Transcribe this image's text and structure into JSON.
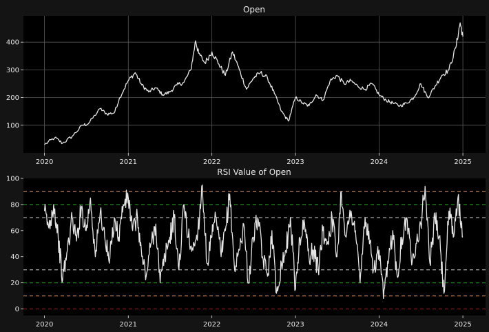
{
  "figure": {
    "background": "#141414",
    "plot_background": "#000000",
    "text_color": "#e8e8e8",
    "line_color": "#e6e6e6"
  },
  "chart_data": [
    {
      "type": "line",
      "title": "Open",
      "xlabel": "",
      "ylabel": "",
      "xlim": [
        "2019-10-01",
        "2025-04-10"
      ],
      "ylim": [
        0,
        495
      ],
      "grid": true,
      "grid_color": "#5a5a5a",
      "x_ticks": [
        "2020-01-01",
        "2021-01-01",
        "2022-01-01",
        "2023-01-01",
        "2024-01-01",
        "2025-01-01"
      ],
      "x_tick_labels": [
        "2020",
        "2021",
        "2022",
        "2023",
        "2024",
        "2025"
      ],
      "y_ticks": [
        100,
        200,
        300,
        400
      ],
      "y_tick_labels": [
        "100",
        "200",
        "300",
        "400"
      ],
      "series": [
        {
          "x": [
            "2020-01-01",
            "2020-02-15",
            "2020-03-20",
            "2020-05-01",
            "2020-06-15",
            "2020-07-10",
            "2020-08-31",
            "2020-09-30",
            "2020-11-01",
            "2020-11-25",
            "2020-12-31",
            "2021-01-31",
            "2021-03-01",
            "2021-03-31",
            "2021-04-30",
            "2021-06-01",
            "2021-07-01",
            "2021-08-01",
            "2021-09-01",
            "2021-10-01",
            "2021-10-22",
            "2021-11-04",
            "2021-12-01",
            "2022-01-01",
            "2022-02-01",
            "2022-03-01",
            "2022-04-01",
            "2022-05-01",
            "2022-06-01",
            "2022-07-01",
            "2022-08-01",
            "2022-09-01",
            "2022-10-01",
            "2022-11-01",
            "2022-12-01",
            "2023-01-01",
            "2023-02-01",
            "2023-03-01",
            "2023-04-01",
            "2023-05-01",
            "2023-06-01",
            "2023-07-01",
            "2023-08-01",
            "2023-09-01",
            "2023-10-01",
            "2023-11-01",
            "2023-12-01",
            "2024-01-01",
            "2024-02-01",
            "2024-03-01",
            "2024-04-01",
            "2024-05-01",
            "2024-06-01",
            "2024-07-01",
            "2024-08-01",
            "2024-09-01",
            "2024-10-01",
            "2024-11-01",
            "2024-12-01",
            "2024-12-20",
            "2025-01-01"
          ],
          "y": [
            30,
            55,
            35,
            60,
            100,
            105,
            160,
            140,
            145,
            200,
            260,
            290,
            245,
            220,
            235,
            210,
            220,
            245,
            255,
            300,
            405,
            360,
            325,
            365,
            320,
            280,
            365,
            300,
            230,
            270,
            290,
            270,
            215,
            150,
            115,
            200,
            180,
            170,
            210,
            190,
            260,
            280,
            250,
            260,
            240,
            230,
            250,
            210,
            190,
            180,
            170,
            180,
            200,
            250,
            200,
            240,
            280,
            300,
            380,
            470,
            420
          ]
        }
      ]
    },
    {
      "type": "line",
      "title": "RSI Value of Open",
      "xlabel": "",
      "ylabel": "",
      "xlim": [
        "2019-10-01",
        "2025-04-10"
      ],
      "ylim": [
        -5,
        100
      ],
      "grid": false,
      "x_ticks": [
        "2020-01-01",
        "2021-01-01",
        "2022-01-01",
        "2023-01-01",
        "2024-01-01",
        "2025-01-01"
      ],
      "x_tick_labels": [
        "2020",
        "2021",
        "2022",
        "2023",
        "2024",
        "2025"
      ],
      "y_ticks": [
        0,
        20,
        40,
        60,
        80,
        100
      ],
      "y_tick_labels": [
        "0",
        "20",
        "40",
        "60",
        "80",
        "100"
      ],
      "reference_lines": [
        {
          "y": 0,
          "color": "#8b1a1a"
        },
        {
          "y": 10,
          "color": "#b07850"
        },
        {
          "y": 20,
          "color": "#1a8a1a"
        },
        {
          "y": 30,
          "color": "#9a9a9a"
        },
        {
          "y": 70,
          "color": "#9a9a9a"
        },
        {
          "y": 80,
          "color": "#1a8a1a"
        },
        {
          "y": 90,
          "color": "#b07850"
        }
      ],
      "series": [
        {
          "x": [
            "2020-01-01",
            "2020-01-20",
            "2020-02-10",
            "2020-03-01",
            "2020-03-20",
            "2020-04-10",
            "2020-05-01",
            "2020-05-20",
            "2020-06-10",
            "2020-07-01",
            "2020-07-20",
            "2020-08-10",
            "2020-09-01",
            "2020-09-20",
            "2020-10-10",
            "2020-11-01",
            "2020-11-20",
            "2020-12-10",
            "2021-01-01",
            "2021-01-20",
            "2021-02-10",
            "2021-03-01",
            "2021-03-20",
            "2021-04-10",
            "2021-05-01",
            "2021-05-20",
            "2021-06-10",
            "2021-07-01",
            "2021-07-20",
            "2021-08-10",
            "2021-09-01",
            "2021-09-20",
            "2021-10-10",
            "2021-11-01",
            "2021-11-20",
            "2021-12-10",
            "2022-01-01",
            "2022-01-20",
            "2022-02-10",
            "2022-03-01",
            "2022-03-20",
            "2022-04-10",
            "2022-05-01",
            "2022-05-20",
            "2022-06-10",
            "2022-07-01",
            "2022-07-20",
            "2022-08-10",
            "2022-09-01",
            "2022-09-20",
            "2022-10-10",
            "2022-11-01",
            "2022-11-20",
            "2022-12-10",
            "2023-01-01",
            "2023-01-20",
            "2023-02-10",
            "2023-03-01",
            "2023-03-20",
            "2023-04-10",
            "2023-05-01",
            "2023-05-20",
            "2023-06-10",
            "2023-07-01",
            "2023-07-20",
            "2023-08-10",
            "2023-09-01",
            "2023-09-20",
            "2023-10-10",
            "2023-11-01",
            "2023-11-20",
            "2023-12-10",
            "2024-01-01",
            "2024-01-20",
            "2024-02-10",
            "2024-03-01",
            "2024-03-20",
            "2024-04-10",
            "2024-05-01",
            "2024-05-20",
            "2024-06-10",
            "2024-07-01",
            "2024-07-20",
            "2024-08-10",
            "2024-09-01",
            "2024-09-20",
            "2024-10-10",
            "2024-11-01",
            "2024-11-20",
            "2024-12-10",
            "2025-01-01"
          ],
          "y": [
            75,
            62,
            80,
            55,
            22,
            45,
            70,
            52,
            78,
            60,
            85,
            40,
            75,
            55,
            35,
            70,
            55,
            80,
            85,
            60,
            70,
            40,
            25,
            50,
            65,
            20,
            40,
            55,
            70,
            30,
            80,
            55,
            45,
            60,
            95,
            35,
            55,
            70,
            40,
            60,
            88,
            30,
            45,
            65,
            20,
            55,
            70,
            40,
            25,
            60,
            12,
            35,
            45,
            70,
            15,
            55,
            65,
            40,
            45,
            30,
            60,
            50,
            70,
            40,
            90,
            55,
            75,
            60,
            20,
            70,
            50,
            30,
            45,
            8,
            35,
            60,
            25,
            55,
            70,
            40,
            50,
            65,
            94,
            35,
            70,
            55,
            12,
            75,
            55,
            85,
            55
          ]
        }
      ]
    }
  ]
}
